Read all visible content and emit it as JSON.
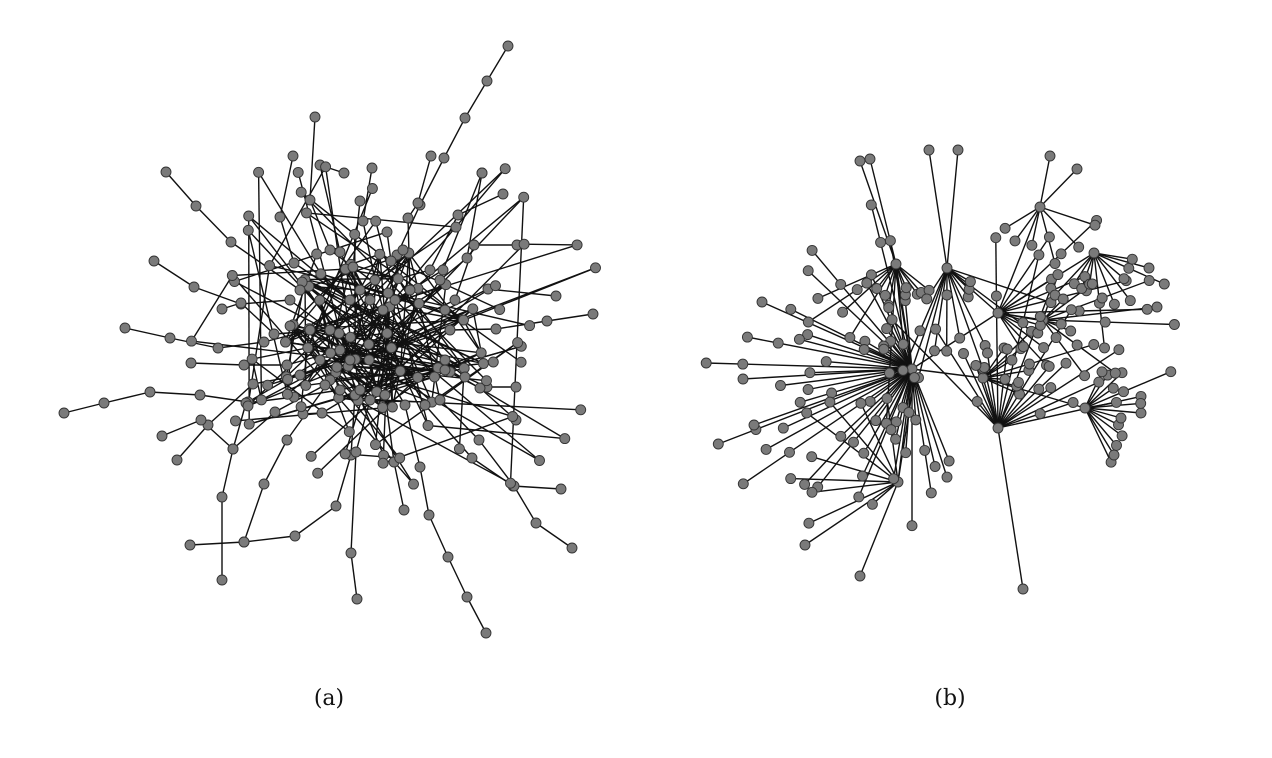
{
  "figure": {
    "panels": [
      {
        "caption": "(a)"
      },
      {
        "caption": "(b)"
      }
    ],
    "node_fill": "#7a7a7a",
    "edge_color": "#111111"
  }
}
